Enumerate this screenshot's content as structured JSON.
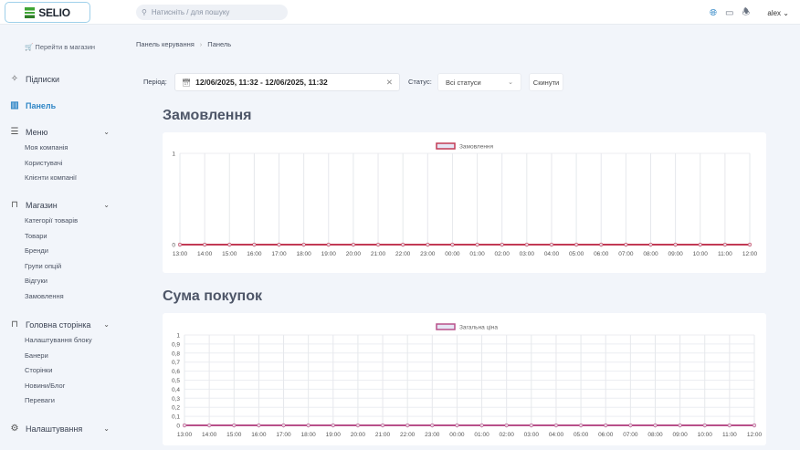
{
  "header": {
    "logo": "SELIO",
    "search_placeholder": "Натисніть / для пошуку",
    "user": "alex",
    "icons": [
      "globe-icon",
      "monitor-icon",
      "bell-icon"
    ]
  },
  "sidebar": {
    "shop_link": "🛒 Перейти в магазин",
    "items": [
      {
        "label": "Підписки",
        "icon": "sparkles-icon"
      },
      {
        "label": "Панель",
        "icon": "bar-chart-icon",
        "active": true
      },
      {
        "label": "Меню",
        "icon": "list-icon",
        "children": [
          "Моя компанія",
          "Користувачі",
          "Клієнти компанії"
        ]
      },
      {
        "label": "Магазин",
        "icon": "bag-icon",
        "children": [
          "Категорії товарів",
          "Товари",
          "Бренди",
          "Групи опцій",
          "Відгуки",
          "Замовлення"
        ]
      },
      {
        "label": "Головна сторінка",
        "icon": "home-box-icon",
        "children": [
          "Налаштування блоку",
          "Банери",
          "Сторінки",
          "Новини/Блог",
          "Переваги"
        ]
      },
      {
        "label": "Налаштування",
        "icon": "gear-icon"
      }
    ]
  },
  "breadcrumb": [
    "Панель керування",
    "Панель"
  ],
  "filters": {
    "period_label": "Період:",
    "period_value": "12/06/2025, 11:32 - 12/06/2025, 11:32",
    "status_label": "Статус:",
    "status_value": "Всі статуси",
    "reset_label": "Скинути"
  },
  "sections": {
    "orders_title": "Замовлення",
    "sum_title": "Сума покупок"
  },
  "chart_data": [
    {
      "type": "line",
      "legend_position": "top",
      "grid": true,
      "x": [
        "13:00",
        "14:00",
        "15:00",
        "16:00",
        "17:00",
        "18:00",
        "19:00",
        "20:00",
        "21:00",
        "22:00",
        "23:00",
        "00:00",
        "01:00",
        "02:00",
        "03:00",
        "04:00",
        "05:00",
        "06:00",
        "07:00",
        "08:00",
        "09:00",
        "10:00",
        "11:00",
        "12:00"
      ],
      "series": [
        {
          "name": "Замовлення",
          "color": "#c23a55",
          "values": [
            0,
            0,
            0,
            0,
            0,
            0,
            0,
            0,
            0,
            0,
            0,
            0,
            0,
            0,
            0,
            0,
            0,
            0,
            0,
            0,
            0,
            0,
            0,
            0
          ]
        }
      ],
      "ylim": [
        0,
        1
      ],
      "yticks": [
        "0",
        "1"
      ]
    },
    {
      "type": "line",
      "legend_position": "top",
      "grid": true,
      "x": [
        "13:00",
        "14:00",
        "15:00",
        "16:00",
        "17:00",
        "18:00",
        "19:00",
        "20:00",
        "21:00",
        "22:00",
        "23:00",
        "00:00",
        "01:00",
        "02:00",
        "03:00",
        "04:00",
        "05:00",
        "06:00",
        "07:00",
        "08:00",
        "09:00",
        "10:00",
        "11:00",
        "12:00"
      ],
      "series": [
        {
          "name": "Загальна ціна",
          "color": "#b8508a",
          "values": [
            0,
            0,
            0,
            0,
            0,
            0,
            0,
            0,
            0,
            0,
            0,
            0,
            0,
            0,
            0,
            0,
            0,
            0,
            0,
            0,
            0,
            0,
            0,
            0
          ]
        }
      ],
      "ylim": [
        0,
        1
      ],
      "yticks": [
        "0",
        "0,1",
        "0,2",
        "0,3",
        "0,4",
        "0,5",
        "0,6",
        "0,7",
        "0,8",
        "0,9",
        "1"
      ]
    }
  ]
}
